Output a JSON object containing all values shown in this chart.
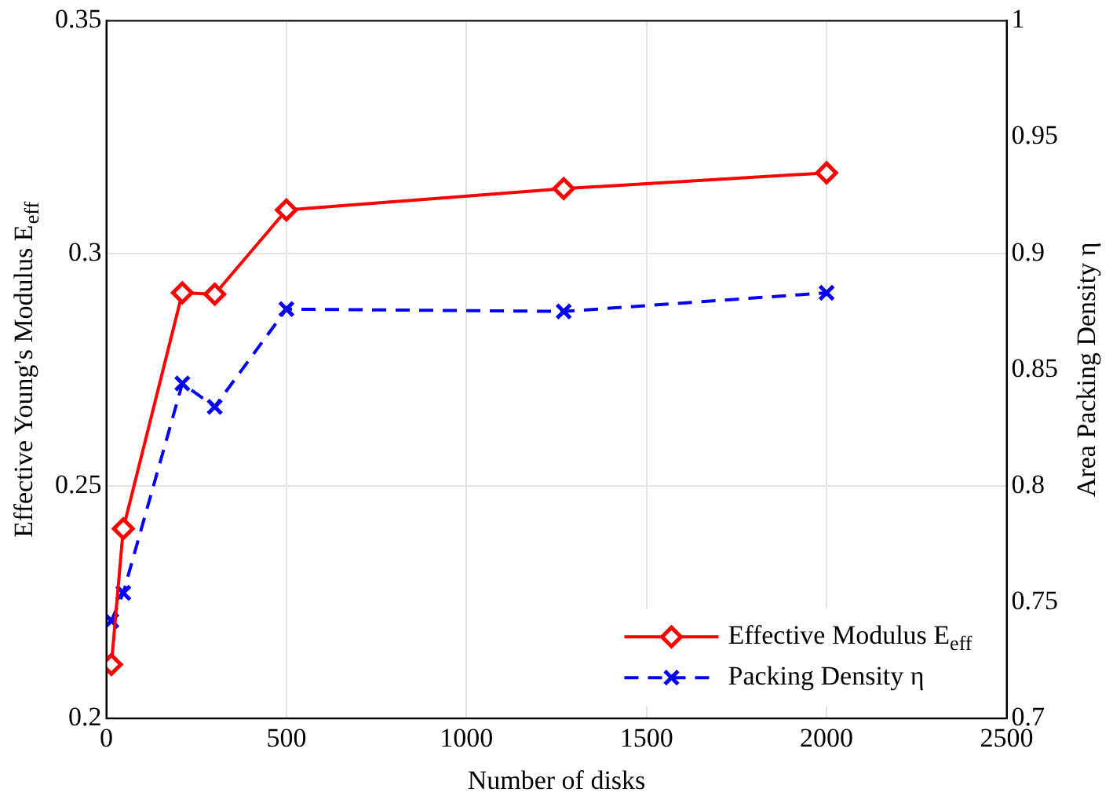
{
  "chart_data": {
    "type": "line",
    "xlabel": "Number of disks",
    "ylabel": "Effective Young's Modulus E$_{eff}$",
    "y2label": "Area Packing Density η",
    "x": [
      14,
      47,
      211,
      301,
      500,
      1270,
      2000
    ],
    "series": [
      {
        "name": "Effective Modulus E$_{eff}$",
        "color": "#ff0000",
        "values": [
          0.2116,
          0.2408,
          0.2915,
          0.2912,
          0.3093,
          0.3139,
          0.3173
        ],
        "marker": "diamond",
        "line_style": "solid"
      },
      {
        "name": "Packing Density η",
        "color": "#0000ff",
        "values": [
          0.742,
          0.754,
          0.844,
          0.834,
          0.876,
          0.875,
          0.883
        ],
        "marker": "cross",
        "line_style": "dashed",
        "axis": "y2"
      }
    ],
    "xlim": [
      0,
      2500
    ],
    "xticks": [
      0,
      500,
      1000,
      1500,
      2000,
      2500
    ],
    "ylim": [
      0.2,
      0.35
    ],
    "yticks": [
      0.2,
      0.25,
      0.3,
      0.35
    ],
    "y2lim": [
      0.7,
      1
    ],
    "y2ticks": [
      0.7,
      0.75,
      0.8,
      0.85,
      0.9,
      0.95,
      1
    ],
    "grid": true,
    "legend": "bottom right"
  }
}
